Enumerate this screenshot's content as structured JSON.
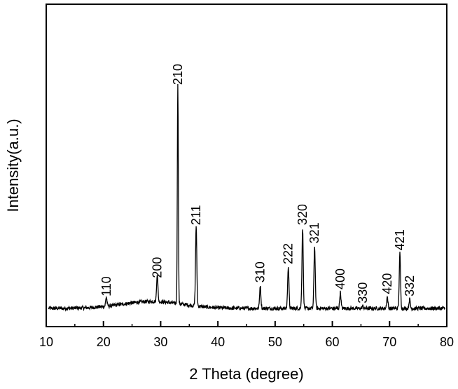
{
  "chart_data": {
    "type": "line",
    "title": "",
    "xlabel": "2 Theta (degree)",
    "ylabel": "Intensity(a.u.)",
    "xlim": [
      10,
      80
    ],
    "ylim": [
      0,
      100
    ],
    "grid": false,
    "legend": "none",
    "line_color": "#000000",
    "x_ticks": [
      10,
      20,
      30,
      40,
      50,
      60,
      70,
      80
    ],
    "baseline_intensity": 4,
    "amorphous_hump": {
      "center": 28.5,
      "width": 7.5,
      "height": 3
    },
    "peaks": [
      {
        "label": "110",
        "x": 20.5,
        "intensity": 4
      },
      {
        "label": "200",
        "x": 29.4,
        "intensity": 12
      },
      {
        "label": "210",
        "x": 33.0,
        "intensity": 96
      },
      {
        "label": "211",
        "x": 36.2,
        "intensity": 35
      },
      {
        "label": "310",
        "x": 47.4,
        "intensity": 10
      },
      {
        "label": "222",
        "x": 52.3,
        "intensity": 18
      },
      {
        "label": "320",
        "x": 54.8,
        "intensity": 35
      },
      {
        "label": "321",
        "x": 56.9,
        "intensity": 27
      },
      {
        "label": "400",
        "x": 61.4,
        "intensity": 7
      },
      {
        "label": "330",
        "x": 65.3,
        "intensity": 1
      },
      {
        "label": "420",
        "x": 69.6,
        "intensity": 5
      },
      {
        "label": "421",
        "x": 71.8,
        "intensity": 24
      },
      {
        "label": "332",
        "x": 73.5,
        "intensity": 4
      }
    ]
  }
}
